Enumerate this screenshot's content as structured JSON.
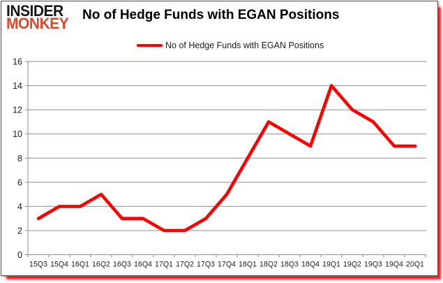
{
  "logo": {
    "line1": "INSIDER",
    "line2": "MONKEY"
  },
  "header": {
    "title": "No of Hedge Funds with EGAN Positions"
  },
  "legend": {
    "label": "No of Hedge Funds with EGAN Positions",
    "swatch_color": "#fe0000"
  },
  "colors": {
    "series_red": "#fe0000",
    "accent_bar_red": "#ef1f24",
    "logo_monkey_orange": "#d9492c",
    "grid_grey": "#8e8e8e",
    "axis_text": "#1c1c1c"
  },
  "chart_data": {
    "type": "line",
    "title": "No of Hedge Funds with EGAN Positions",
    "xlabel": "",
    "ylabel": "",
    "categories": [
      "15Q3",
      "15Q4",
      "16Q1",
      "16Q2",
      "16Q3",
      "16Q4",
      "17Q1",
      "17Q2",
      "17Q3",
      "17Q4",
      "18Q1",
      "18Q2",
      "18Q3",
      "18Q4",
      "19Q1",
      "19Q2",
      "19Q3",
      "19Q4",
      "20Q1"
    ],
    "series": [
      {
        "name": "No of Hedge Funds with EGAN Positions",
        "color": "#fe0000",
        "values": [
          3,
          4,
          4,
          5,
          3,
          3,
          2,
          2,
          3,
          5,
          8,
          11,
          10,
          9,
          14,
          12,
          11,
          9,
          9
        ]
      }
    ],
    "ylim": [
      0,
      16
    ],
    "yticks": [
      0,
      2,
      4,
      6,
      8,
      10,
      12,
      14,
      16
    ],
    "grid": true,
    "legend_position": "top"
  }
}
